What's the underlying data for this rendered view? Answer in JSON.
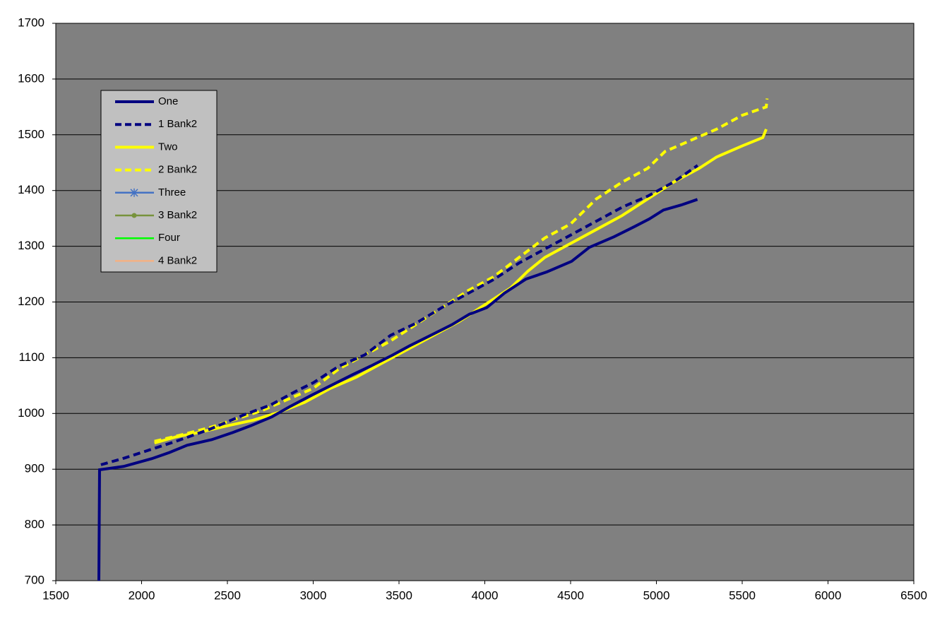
{
  "chart_data": {
    "type": "line",
    "xlim": [
      1500,
      6500
    ],
    "xticks": [
      1500,
      2000,
      2500,
      3000,
      3500,
      4000,
      4500,
      5000,
      5500,
      6000,
      6500
    ],
    "ylim": [
      700,
      1700
    ],
    "yticks": [
      700,
      800,
      900,
      1000,
      1100,
      1200,
      1300,
      1400,
      1500,
      1600,
      1700
    ],
    "grid": true,
    "legend": "upper-left",
    "series": [
      {
        "name": "One",
        "color": "#000080",
        "dash": false,
        "x": [
          1751,
          1755,
          1895,
          2060,
          2163,
          2265,
          2409,
          2533,
          2636,
          2759,
          2862,
          2986,
          3109,
          3232,
          3335,
          3458,
          3560,
          3684,
          3807,
          3910,
          4012,
          4115,
          4239,
          4362,
          4506,
          4609,
          4753,
          4877,
          4959,
          5041,
          5144,
          5239
        ],
        "values": [
          700,
          899,
          905,
          919,
          930,
          943,
          953,
          966,
          978,
          994,
          1012,
          1032,
          1051,
          1070,
          1085,
          1104,
          1121,
          1140,
          1159,
          1178,
          1190,
          1216,
          1241,
          1254,
          1273,
          1298,
          1317,
          1336,
          1349,
          1365,
          1374,
          1384
        ]
      },
      {
        "name": "1 Bank2",
        "color": "#000080",
        "dash": true,
        "x": [
          1763,
          1900,
          2050,
          2200,
          2400,
          2600,
          2750,
          2900,
          3000,
          3150,
          3300,
          3450,
          3600,
          3750,
          3900,
          4050,
          4200,
          4350,
          4500,
          4650,
          4800,
          4950,
          5100,
          5240
        ],
        "values": [
          908,
          920,
          935,
          950,
          972,
          998,
          1015,
          1040,
          1055,
          1085,
          1105,
          1140,
          1162,
          1190,
          1215,
          1240,
          1270,
          1295,
          1320,
          1345,
          1370,
          1390,
          1415,
          1445
        ]
      },
      {
        "name": "Two",
        "color": "#ffff00",
        "dash": false,
        "x": [
          2075,
          2200,
          2350,
          2500,
          2650,
          2800,
          2950,
          3100,
          3250,
          3400,
          3550,
          3700,
          3850,
          4000,
          4150,
          4250,
          4350,
          4500,
          4650,
          4800,
          4950,
          5100,
          5250,
          5350,
          5500,
          5620,
          5640
        ],
        "values": [
          947,
          958,
          967,
          978,
          988,
          1002,
          1020,
          1045,
          1065,
          1090,
          1115,
          1140,
          1165,
          1195,
          1225,
          1255,
          1280,
          1305,
          1330,
          1355,
          1385,
          1415,
          1440,
          1460,
          1480,
          1495,
          1510
        ]
      },
      {
        "name": "2 Bank2",
        "color": "#ffff00",
        "dash": true,
        "x": [
          2075,
          2250,
          2400,
          2550,
          2700,
          2850,
          3000,
          3150,
          3300,
          3450,
          3600,
          3750,
          3900,
          4050,
          4200,
          4350,
          4500,
          4650,
          4800,
          4950,
          5050,
          5200,
          5350,
          5500,
          5640,
          5645
        ],
        "values": [
          950,
          963,
          975,
          990,
          1005,
          1025,
          1045,
          1080,
          1105,
          1130,
          1160,
          1190,
          1220,
          1245,
          1280,
          1315,
          1340,
          1385,
          1415,
          1440,
          1470,
          1490,
          1510,
          1535,
          1550,
          1565
        ]
      },
      {
        "name": "Three",
        "color": "#4472c4",
        "dash": false,
        "marker": "star",
        "x": [],
        "values": []
      },
      {
        "name": "3 Bank2",
        "color": "#77933c",
        "dash": false,
        "marker": "circle",
        "x": [],
        "values": []
      },
      {
        "name": "Four",
        "color": "#00ff00",
        "dash": false,
        "x": [],
        "values": []
      },
      {
        "name": "4 Bank2",
        "color": "#f4b183",
        "dash": false,
        "x": [],
        "values": []
      }
    ]
  }
}
